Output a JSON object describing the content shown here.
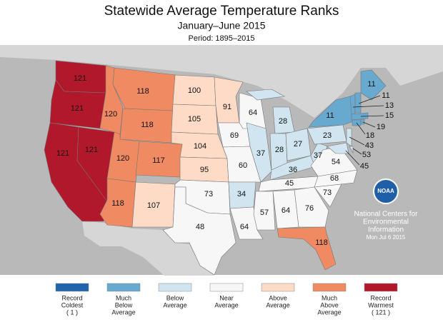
{
  "header": {
    "title": "Statewide Average Temperature Ranks",
    "subtitle": "January–June 2015",
    "period": "Period: 1895–2015"
  },
  "map_labels": [
    121,
    121,
    121,
    121,
    120,
    118,
    118,
    120,
    117,
    118,
    107,
    100,
    105,
    104,
    95,
    73,
    48,
    91,
    69,
    60,
    34,
    64,
    64,
    28,
    37,
    28,
    27,
    36,
    37,
    54,
    45,
    68,
    73,
    76,
    64,
    57,
    118,
    23,
    11,
    11,
    11,
    13,
    15,
    19,
    18,
    43,
    53,
    45
  ],
  "logo": "NOAA",
  "credit": [
    "National Centers for",
    "Environmental",
    "Information",
    "Mon Jul  6 2015"
  ],
  "legend": [
    {
      "lines": [
        "Record",
        "Coldest",
        "( 1 )"
      ],
      "color": "#2166ac"
    },
    {
      "lines": [
        "Much",
        "Below",
        "Average"
      ],
      "color": "#67a9cf"
    },
    {
      "lines": [
        "Below",
        "Average"
      ],
      "color": "#d1e5f0"
    },
    {
      "lines": [
        "Near",
        "Average"
      ],
      "color": "#f7f7f7"
    },
    {
      "lines": [
        "Above",
        "Average"
      ],
      "color": "#fddbc7"
    },
    {
      "lines": [
        "Much",
        "Above",
        "Average"
      ],
      "color": "#ef8a62"
    },
    {
      "lines": [
        "Record",
        "Warmest",
        "( 121 )"
      ],
      "color": "#b2182b"
    }
  ]
}
